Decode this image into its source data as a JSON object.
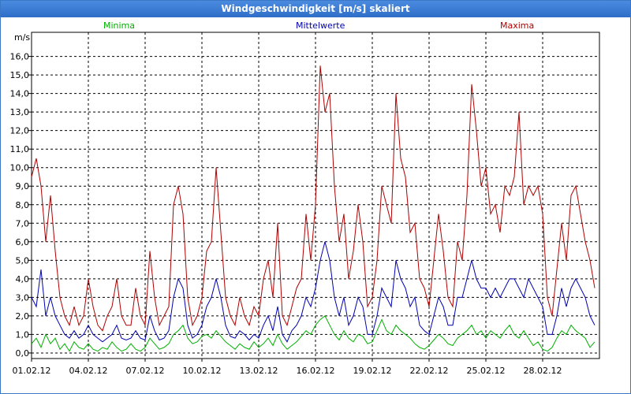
{
  "title": "Windgeschwindigkeit [m/s] skaliert",
  "legend": [
    {
      "label": "Minima",
      "color": "#00b000"
    },
    {
      "label": "Mittelwerte",
      "color": "#0000b0"
    },
    {
      "label": "Maxima",
      "color": "#b00000"
    }
  ],
  "chart_data": {
    "type": "line",
    "title": "Windgeschwindigkeit [m/s] skaliert",
    "ylabel": "m/s",
    "xlabel": "",
    "ylim": [
      -0.3,
      17.3
    ],
    "xlim": [
      0,
      30
    ],
    "grid": true,
    "y_ticks": [
      "0,0",
      "1,0",
      "2,0",
      "3,0",
      "4,0",
      "5,0",
      "6,0",
      "7,0",
      "8,0",
      "9,0",
      "10,0",
      "11,0",
      "12,0",
      "13,0",
      "14,0",
      "15,0",
      "16,0"
    ],
    "x_ticks": [
      {
        "day": 0,
        "label": "01.02.12"
      },
      {
        "day": 3,
        "label": "04.02.12"
      },
      {
        "day": 6,
        "label": "07.02.12"
      },
      {
        "day": 9,
        "label": "10.02.12"
      },
      {
        "day": 12,
        "label": "13.02.12"
      },
      {
        "day": 15,
        "label": "16.02.12"
      },
      {
        "day": 18,
        "label": "19.02.12"
      },
      {
        "day": 21,
        "label": "22.02.12"
      },
      {
        "day": 24,
        "label": "25.02.12"
      },
      {
        "day": 27,
        "label": "28.02.12"
      }
    ],
    "series": [
      {
        "name": "Maxima",
        "color": "#b00000",
        "x": [
          0,
          0.25,
          0.5,
          0.75,
          1,
          1.25,
          1.5,
          1.75,
          2,
          2.25,
          2.5,
          2.75,
          3,
          3.25,
          3.5,
          3.75,
          4,
          4.25,
          4.5,
          4.75,
          5,
          5.25,
          5.5,
          5.75,
          6,
          6.25,
          6.5,
          6.75,
          7,
          7.25,
          7.5,
          7.75,
          8,
          8.25,
          8.5,
          8.75,
          9,
          9.25,
          9.5,
          9.75,
          10,
          10.25,
          10.5,
          10.75,
          11,
          11.25,
          11.5,
          11.75,
          12,
          12.25,
          12.5,
          12.75,
          13,
          13.25,
          13.5,
          13.75,
          14,
          14.25,
          14.5,
          14.75,
          15,
          15.25,
          15.5,
          15.75,
          16,
          16.25,
          16.5,
          16.75,
          17,
          17.25,
          17.5,
          17.75,
          18,
          18.25,
          18.5,
          18.75,
          19,
          19.25,
          19.5,
          19.75,
          20,
          20.25,
          20.5,
          20.75,
          21,
          21.25,
          21.5,
          21.75,
          22,
          22.25,
          22.5,
          22.75,
          23,
          23.25,
          23.5,
          23.75,
          24,
          24.25,
          24.5,
          24.75,
          25,
          25.25,
          25.5,
          25.75,
          26,
          26.25,
          26.5,
          26.75,
          27,
          27.25,
          27.5,
          27.75,
          28,
          28.25,
          28.5,
          28.75,
          29,
          29.25,
          29.5,
          29.75
        ],
        "values": [
          9.5,
          10.5,
          9.0,
          6.0,
          8.5,
          5.5,
          3.0,
          2.0,
          1.5,
          2.5,
          1.5,
          2.0,
          4.0,
          2.5,
          1.5,
          1.2,
          2.0,
          2.5,
          4.0,
          2.0,
          1.5,
          1.5,
          3.5,
          2.0,
          1.5,
          5.5,
          3.0,
          1.5,
          2.0,
          2.5,
          8.0,
          9.0,
          7.5,
          3.0,
          1.5,
          2.0,
          3.0,
          5.5,
          6.0,
          10.0,
          6.5,
          3.0,
          2.0,
          1.5,
          3.0,
          2.0,
          1.5,
          2.5,
          2.0,
          4.0,
          5.0,
          3.0,
          7.0,
          2.0,
          1.5,
          2.5,
          3.5,
          4.0,
          7.5,
          5.0,
          8.0,
          15.5,
          13.0,
          14.0,
          9.0,
          6.0,
          7.5,
          4.0,
          5.5,
          8.0,
          6.0,
          2.5,
          3.0,
          5.0,
          9.0,
          8.0,
          7.0,
          14.0,
          10.5,
          9.5,
          6.5,
          7.0,
          4.0,
          3.5,
          2.5,
          5.0,
          7.5,
          5.5,
          3.0,
          2.5,
          6.0,
          5.0,
          8.5,
          14.5,
          12.0,
          9.0,
          10.0,
          7.5,
          8.0,
          6.5,
          9.0,
          8.5,
          9.5,
          13.0,
          8.0,
          9.0,
          8.5,
          9.0,
          7.5,
          3.0,
          2.0,
          4.5,
          7.0,
          5.0,
          8.5,
          9.0,
          7.5,
          6.0,
          5.0,
          3.5
        ]
      },
      {
        "name": "Mittelwerte",
        "color": "#0000b0",
        "x": [
          0,
          0.25,
          0.5,
          0.75,
          1,
          1.25,
          1.5,
          1.75,
          2,
          2.25,
          2.5,
          2.75,
          3,
          3.25,
          3.5,
          3.75,
          4,
          4.25,
          4.5,
          4.75,
          5,
          5.25,
          5.5,
          5.75,
          6,
          6.25,
          6.5,
          6.75,
          7,
          7.25,
          7.5,
          7.75,
          8,
          8.25,
          8.5,
          8.75,
          9,
          9.25,
          9.5,
          9.75,
          10,
          10.25,
          10.5,
          10.75,
          11,
          11.25,
          11.5,
          11.75,
          12,
          12.25,
          12.5,
          12.75,
          13,
          13.25,
          13.5,
          13.75,
          14,
          14.25,
          14.5,
          14.75,
          15,
          15.25,
          15.5,
          15.75,
          16,
          16.25,
          16.5,
          16.75,
          17,
          17.25,
          17.5,
          17.75,
          18,
          18.25,
          18.5,
          18.75,
          19,
          19.25,
          19.5,
          19.75,
          20,
          20.25,
          20.5,
          20.75,
          21,
          21.25,
          21.5,
          21.75,
          22,
          22.25,
          22.5,
          22.75,
          23,
          23.25,
          23.5,
          23.75,
          24,
          24.25,
          24.5,
          24.75,
          25,
          25.25,
          25.5,
          25.75,
          26,
          26.25,
          26.5,
          26.75,
          27,
          27.25,
          27.5,
          27.75,
          28,
          28.25,
          28.5,
          28.75,
          29,
          29.25,
          29.5,
          29.75
        ],
        "values": [
          3.0,
          2.5,
          4.5,
          2.0,
          3.0,
          2.0,
          1.5,
          1.0,
          0.8,
          1.2,
          0.8,
          1.0,
          1.5,
          1.0,
          0.8,
          0.6,
          0.8,
          1.0,
          1.5,
          0.8,
          0.7,
          0.8,
          1.2,
          0.8,
          0.7,
          2.0,
          1.2,
          0.7,
          0.8,
          1.2,
          3.0,
          4.0,
          3.5,
          1.5,
          0.8,
          1.0,
          1.5,
          2.5,
          3.0,
          4.0,
          3.0,
          1.5,
          0.9,
          0.8,
          1.2,
          1.0,
          0.7,
          1.0,
          0.8,
          1.5,
          2.0,
          1.2,
          2.5,
          1.0,
          0.6,
          1.2,
          1.5,
          2.0,
          3.0,
          2.5,
          3.5,
          5.0,
          6.0,
          5.0,
          3.0,
          2.0,
          3.0,
          1.5,
          2.0,
          3.0,
          2.5,
          1.0,
          1.0,
          2.0,
          3.5,
          3.0,
          2.5,
          5.0,
          4.0,
          3.5,
          2.5,
          3.0,
          1.5,
          1.2,
          1.0,
          2.0,
          3.0,
          2.5,
          1.5,
          1.5,
          3.0,
          3.0,
          4.0,
          5.0,
          4.0,
          3.5,
          3.5,
          3.0,
          3.5,
          3.0,
          3.5,
          4.0,
          4.0,
          3.5,
          3.0,
          4.0,
          3.5,
          3.0,
          2.5,
          1.0,
          1.0,
          2.0,
          3.5,
          2.5,
          3.5,
          4.0,
          3.5,
          3.0,
          2.0,
          1.5
        ]
      },
      {
        "name": "Minima",
        "color": "#00b000",
        "x": [
          0,
          0.25,
          0.5,
          0.75,
          1,
          1.25,
          1.5,
          1.75,
          2,
          2.25,
          2.5,
          2.75,
          3,
          3.25,
          3.5,
          3.75,
          4,
          4.25,
          4.5,
          4.75,
          5,
          5.25,
          5.5,
          5.75,
          6,
          6.25,
          6.5,
          6.75,
          7,
          7.25,
          7.5,
          7.75,
          8,
          8.25,
          8.5,
          8.75,
          9,
          9.25,
          9.5,
          9.75,
          10,
          10.25,
          10.5,
          10.75,
          11,
          11.25,
          11.5,
          11.75,
          12,
          12.25,
          12.5,
          12.75,
          13,
          13.25,
          13.5,
          13.75,
          14,
          14.25,
          14.5,
          14.75,
          15,
          15.25,
          15.5,
          15.75,
          16,
          16.25,
          16.5,
          16.75,
          17,
          17.25,
          17.5,
          17.75,
          18,
          18.25,
          18.5,
          18.75,
          19,
          19.25,
          19.5,
          19.75,
          20,
          20.25,
          20.5,
          20.75,
          21,
          21.25,
          21.5,
          21.75,
          22,
          22.25,
          22.5,
          22.75,
          23,
          23.25,
          23.5,
          23.75,
          24,
          24.25,
          24.5,
          24.75,
          25,
          25.25,
          25.5,
          25.75,
          26,
          26.25,
          26.5,
          26.75,
          27,
          27.25,
          27.5,
          27.75,
          28,
          28.25,
          28.5,
          28.75,
          29,
          29.25,
          29.5,
          29.75
        ],
        "values": [
          0.5,
          0.8,
          0.3,
          1.0,
          0.5,
          0.8,
          0.2,
          0.5,
          0.1,
          0.6,
          0.3,
          0.2,
          0.5,
          0.2,
          0.1,
          0.3,
          0.2,
          0.6,
          0.3,
          0.1,
          0.2,
          0.5,
          0.2,
          0.1,
          0.3,
          0.8,
          0.5,
          0.2,
          0.3,
          0.5,
          1.0,
          1.2,
          1.5,
          0.8,
          0.5,
          0.6,
          0.9,
          1.0,
          0.8,
          1.2,
          0.9,
          0.6,
          0.4,
          0.2,
          0.5,
          0.3,
          0.2,
          0.6,
          0.3,
          0.5,
          0.8,
          0.4,
          1.0,
          0.5,
          0.2,
          0.4,
          0.6,
          0.9,
          1.2,
          1.0,
          1.5,
          1.8,
          2.0,
          1.5,
          1.0,
          0.7,
          1.2,
          0.8,
          0.6,
          1.0,
          0.9,
          0.5,
          0.6,
          1.2,
          1.8,
          1.2,
          1.0,
          1.5,
          1.2,
          1.0,
          0.8,
          0.5,
          0.3,
          0.2,
          0.4,
          0.7,
          1.0,
          0.8,
          0.5,
          0.4,
          0.8,
          1.0,
          1.2,
          1.5,
          1.0,
          1.2,
          0.8,
          1.2,
          1.0,
          0.8,
          1.2,
          1.5,
          1.0,
          0.8,
          1.2,
          0.8,
          0.4,
          0.6,
          0.2,
          0.1,
          0.3,
          0.8,
          1.2,
          1.0,
          1.5,
          1.2,
          1.0,
          0.8,
          0.3,
          0.6
        ]
      }
    ]
  }
}
